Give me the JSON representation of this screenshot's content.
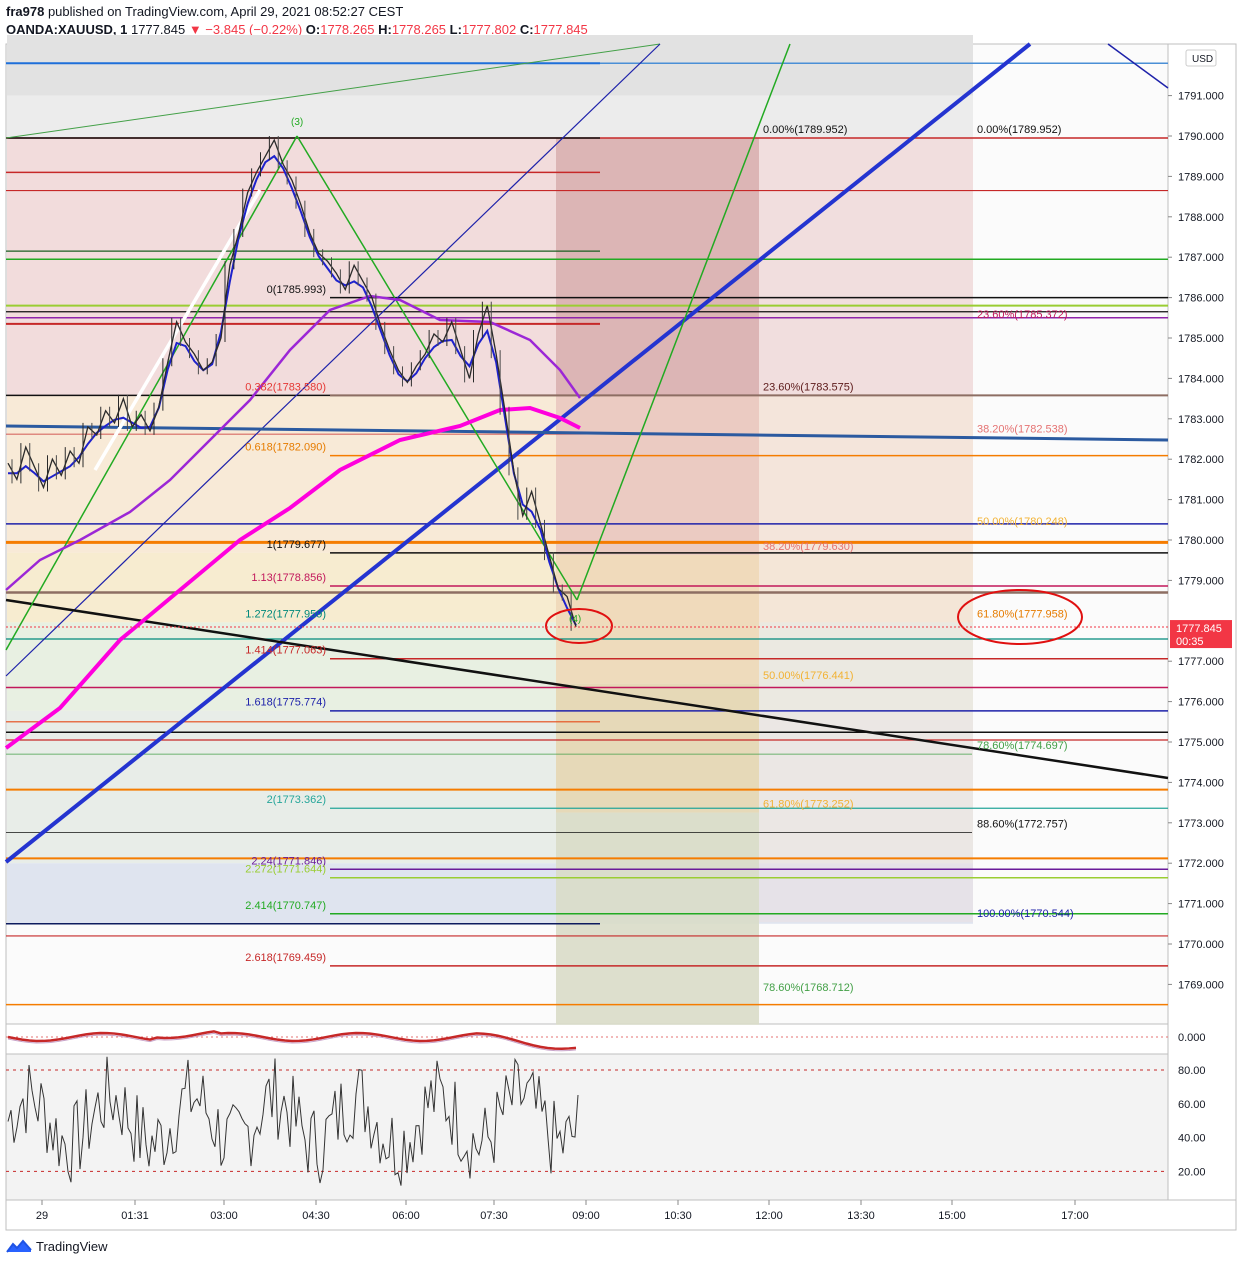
{
  "header": {
    "publisher": "fra978",
    "published_text": "published on TradingView.com, April 29, 2021 08:52:27 CEST",
    "symbol": "OANDA:XAUUSD, 1",
    "last": "1777.845",
    "change": "▼ −3.845 (−0.22%)",
    "o_label": "O:",
    "o": "1778.265",
    "h_label": "H:",
    "h": "1778.265",
    "l_label": "L:",
    "l": "1777.802",
    "c_label": "C:",
    "c": "1777.845"
  },
  "footer": {
    "brand": "TradingView"
  },
  "colors": {
    "up": "#26a69a",
    "down": "#ef5350",
    "price_tag": "#f23645",
    "fib_blue": "#1e22aa",
    "wave_green": "#22aa22",
    "ma_pink": "#ff00dd",
    "ma_purple": "#9c27d6"
  },
  "chart_data": {
    "type": "line",
    "title": "",
    "xlabel": "",
    "ylabel": "",
    "currency": "USD",
    "ylim": [
      1768,
      1792
    ],
    "y_ticks": [
      "1791.000",
      "1790.000",
      "1789.000",
      "1788.000",
      "1787.000",
      "1786.000",
      "1785.000",
      "1784.000",
      "1783.000",
      "1782.000",
      "1781.000",
      "1780.000",
      "1779.000",
      "1777.000",
      "1776.000",
      "1775.000",
      "1774.000",
      "1773.000",
      "1772.000",
      "1771.000",
      "1770.000",
      "1769.000"
    ],
    "x_ticks": [
      "29",
      "01:31",
      "03:00",
      "04:30",
      "06:00",
      "07:30",
      "09:00",
      "10:30",
      "12:00",
      "13:30",
      "15:00",
      "17:00"
    ],
    "last_price": "1777.845",
    "countdown": "00:35",
    "price_path": [
      1781.9,
      1781.5,
      1782.3,
      1781.8,
      1781.3,
      1782.0,
      1781.6,
      1782.2,
      1781.9,
      1782.8,
      1782.6,
      1783.2,
      1782.9,
      1783.5,
      1782.8,
      1783.1,
      1782.7,
      1783.3,
      1784.4,
      1785.4,
      1784.9,
      1784.6,
      1784.2,
      1784.4,
      1785.0,
      1786.8,
      1787.6,
      1788.6,
      1789.1,
      1789.5,
      1789.9,
      1789.3,
      1788.9,
      1788.3,
      1787.6,
      1787.1,
      1786.9,
      1786.6,
      1786.2,
      1786.8,
      1786.4,
      1786.0,
      1785.3,
      1784.7,
      1784.2,
      1783.9,
      1784.3,
      1784.6,
      1785.1,
      1784.9,
      1785.4,
      1784.7,
      1784.0,
      1785.1,
      1785.8,
      1784.6,
      1783.2,
      1781.7,
      1780.6,
      1781.2,
      1780.4,
      1779.6,
      1778.8,
      1778.6,
      1777.85
    ],
    "elliott_wave": [
      {
        "label": "(3)",
        "price": 1790.0
      },
      {
        "label": "(4)",
        "price": 1777.9
      }
    ],
    "fib_extension_levels": [
      {
        "label": "0(1785.993)",
        "value": 1785.993
      },
      {
        "label": "0.382(1783.580)",
        "value": 1783.58
      },
      {
        "label": "0.618(1782.090)",
        "value": 1782.09
      },
      {
        "label": "1(1779.677)",
        "value": 1779.677
      },
      {
        "label": "1.13(1778.856)",
        "value": 1778.856
      },
      {
        "label": "1.272(1777.959)",
        "value": 1777.959
      },
      {
        "label": "1.414(1777.063)",
        "value": 1777.063
      },
      {
        "label": "1.618(1775.774)",
        "value": 1775.774
      },
      {
        "label": "2(1773.362)",
        "value": 1773.362
      },
      {
        "label": "2.24(1771.846)",
        "value": 1771.846
      },
      {
        "label": "2.272(1771.644)",
        "value": 1771.644
      },
      {
        "label": "2.414(1770.747)",
        "value": 1770.747
      },
      {
        "label": "2.618(1769.459)",
        "value": 1769.459
      }
    ],
    "fib_retracement_mid": [
      {
        "label": "0.00%(1789.952)",
        "value": 1789.952
      },
      {
        "label": "23.60%(1783.575)",
        "value": 1783.575
      },
      {
        "label": "38.20%(1779.630)",
        "value": 1779.63
      },
      {
        "label": "50.00%(1776.441)",
        "value": 1776.441
      },
      {
        "label": "61.80%(1773.252)",
        "value": 1773.252
      },
      {
        "label": "78.60%(1768.712)",
        "value": 1768.712
      }
    ],
    "fib_retracement_right": [
      {
        "label": "0.00%(1789.952)",
        "value": 1789.952
      },
      {
        "label": "23.60%(1785.372)",
        "value": 1785.372
      },
      {
        "label": "38.20%(1782.538)",
        "value": 1782.538
      },
      {
        "label": "50.00%(1780.248)",
        "value": 1780.248
      },
      {
        "label": "61.80%(1777.958)",
        "value": 1777.958
      },
      {
        "label": "78.60%(1774.697)",
        "value": 1774.697
      },
      {
        "label": "88.60%(1772.757)",
        "value": 1772.757
      },
      {
        "label": "100.00%(1770.544)",
        "value": 1770.544
      }
    ],
    "macd_panel": {
      "ticks": [
        "0.000"
      ]
    },
    "rsi_panel": {
      "ticks": [
        "80.00",
        "60.00",
        "40.00",
        "20.00"
      ],
      "ylim": [
        8,
        92
      ],
      "overbought": 80,
      "oversold": 20
    }
  }
}
